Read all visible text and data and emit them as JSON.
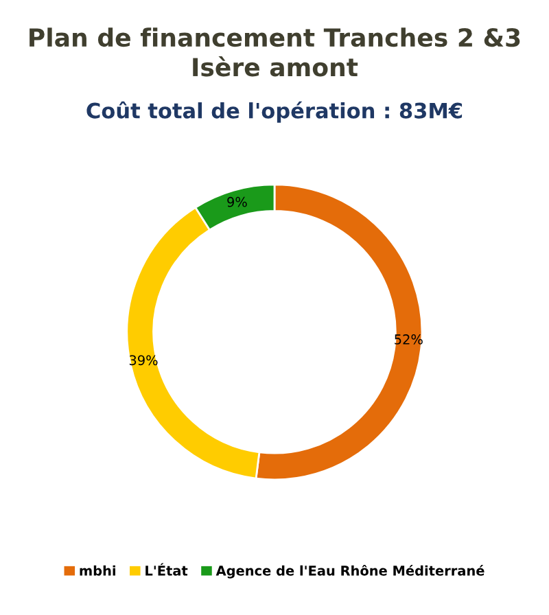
{
  "chart_data": {
    "type": "donut",
    "title": "Plan de financement Tranches 2 &3\nIsère amont",
    "subtitle": "Coût total de l'opération : 83M€",
    "categories": [
      "mbhi",
      "L'État",
      "Agence de l'Eau Rhône Méditerrané"
    ],
    "values": [
      52,
      39,
      9
    ],
    "colors": [
      "#e46c0a",
      "#ffcc00",
      "#1a9a1a"
    ],
    "value_labels": [
      "52%",
      "39%",
      "9%"
    ],
    "legend": "bottom"
  }
}
